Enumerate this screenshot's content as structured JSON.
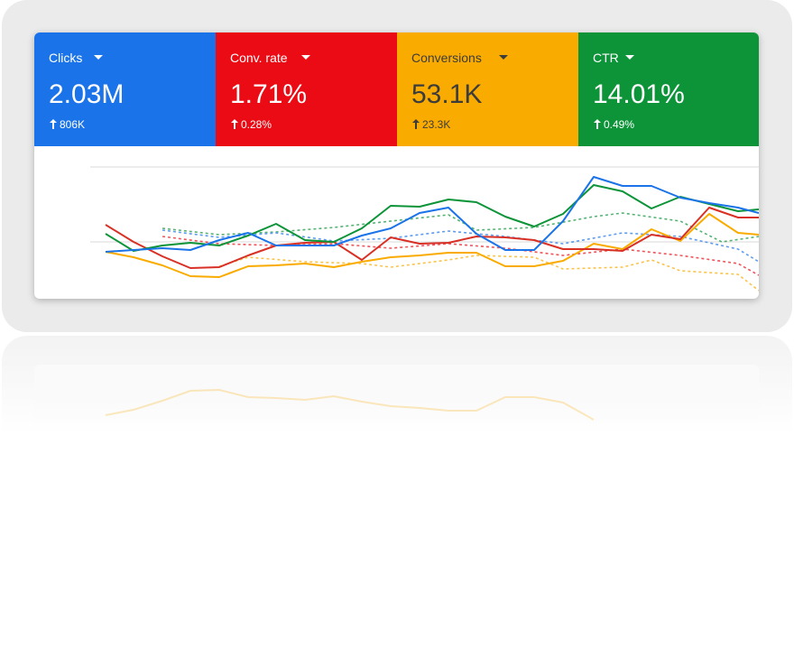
{
  "tiles": [
    {
      "label": "Clicks",
      "value": "2.03M",
      "change": "806K"
    },
    {
      "label": "Conv. rate",
      "value": "1.71%",
      "change": "0.28%"
    },
    {
      "label": "Conversions",
      "value": "53.1K",
      "change": "23.3K"
    },
    {
      "label": "CTR",
      "value": "14.01%",
      "change": "0.49%"
    }
  ]
}
